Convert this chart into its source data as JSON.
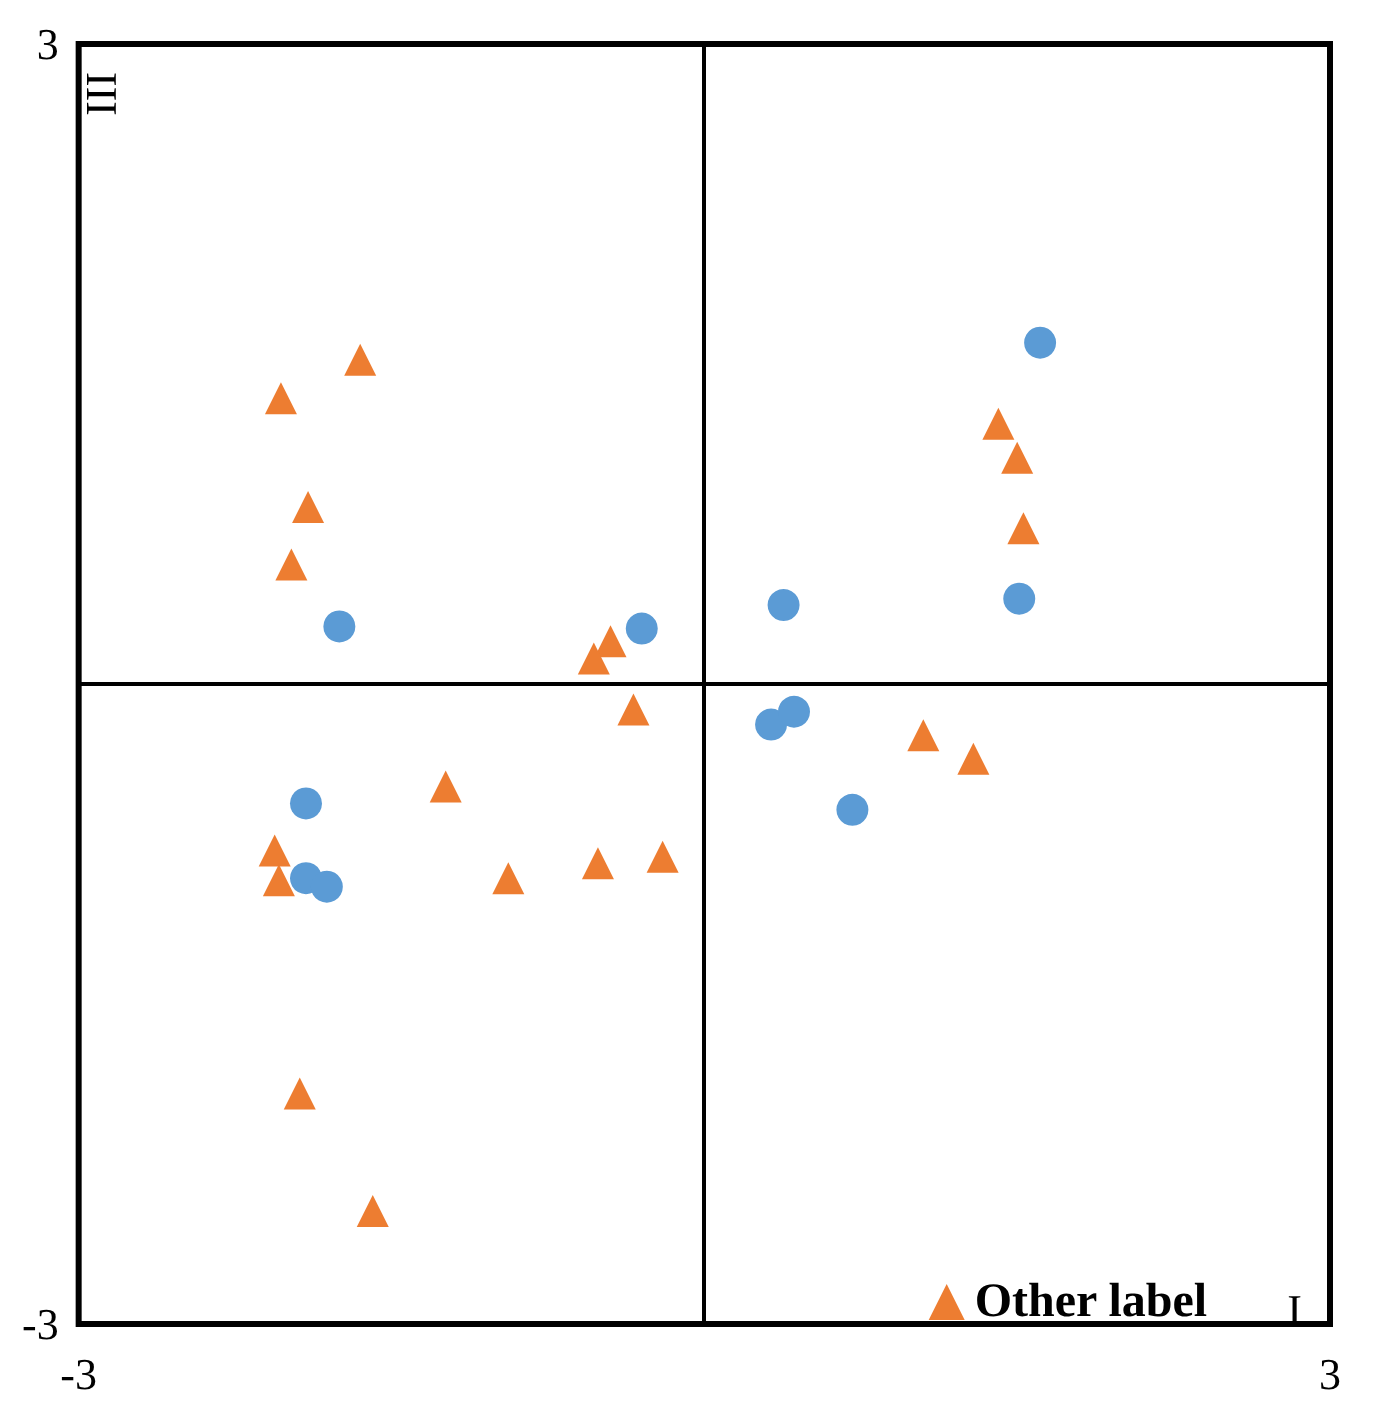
{
  "chart_data": {
    "type": "scatter",
    "xlim": [
      -3,
      3
    ],
    "ylim": [
      -3,
      3
    ],
    "xticks": [
      -3,
      3
    ],
    "yticks": [
      -3,
      3
    ],
    "grid": false,
    "legend": "bottom right",
    "annotations": [
      "I",
      "III"
    ],
    "series": [
      {
        "color": "#5b9bd5",
        "marker": "circle",
        "x": [
          -1.75,
          -0.3,
          1.61,
          1.51,
          0.38,
          0.32,
          0.43,
          0.71,
          -1.91,
          -1.91,
          -1.81
        ],
        "values": [
          0.27,
          0.26,
          1.6,
          0.4,
          0.37,
          -0.19,
          -0.13,
          -0.59,
          -0.56,
          -0.91,
          -0.95
        ]
      },
      {
        "name": "Other label",
        "color": "#ed7d31",
        "marker": "triangle",
        "x": [
          -1.65,
          -2.03,
          -1.9,
          -1.98,
          -0.45,
          -0.53,
          -0.34,
          -1.24,
          -2.06,
          -2.04,
          -0.94,
          -0.51,
          -0.2,
          -1.94,
          -1.59,
          1.41,
          1.5,
          1.53,
          1.05,
          1.29
        ],
        "values": [
          1.52,
          1.34,
          0.83,
          0.56,
          0.2,
          0.12,
          -0.12,
          -0.48,
          -0.78,
          -0.92,
          -0.91,
          -0.84,
          -0.81,
          -1.92,
          -2.47,
          1.22,
          1.06,
          0.73,
          -0.24,
          -0.35
        ]
      }
    ]
  }
}
